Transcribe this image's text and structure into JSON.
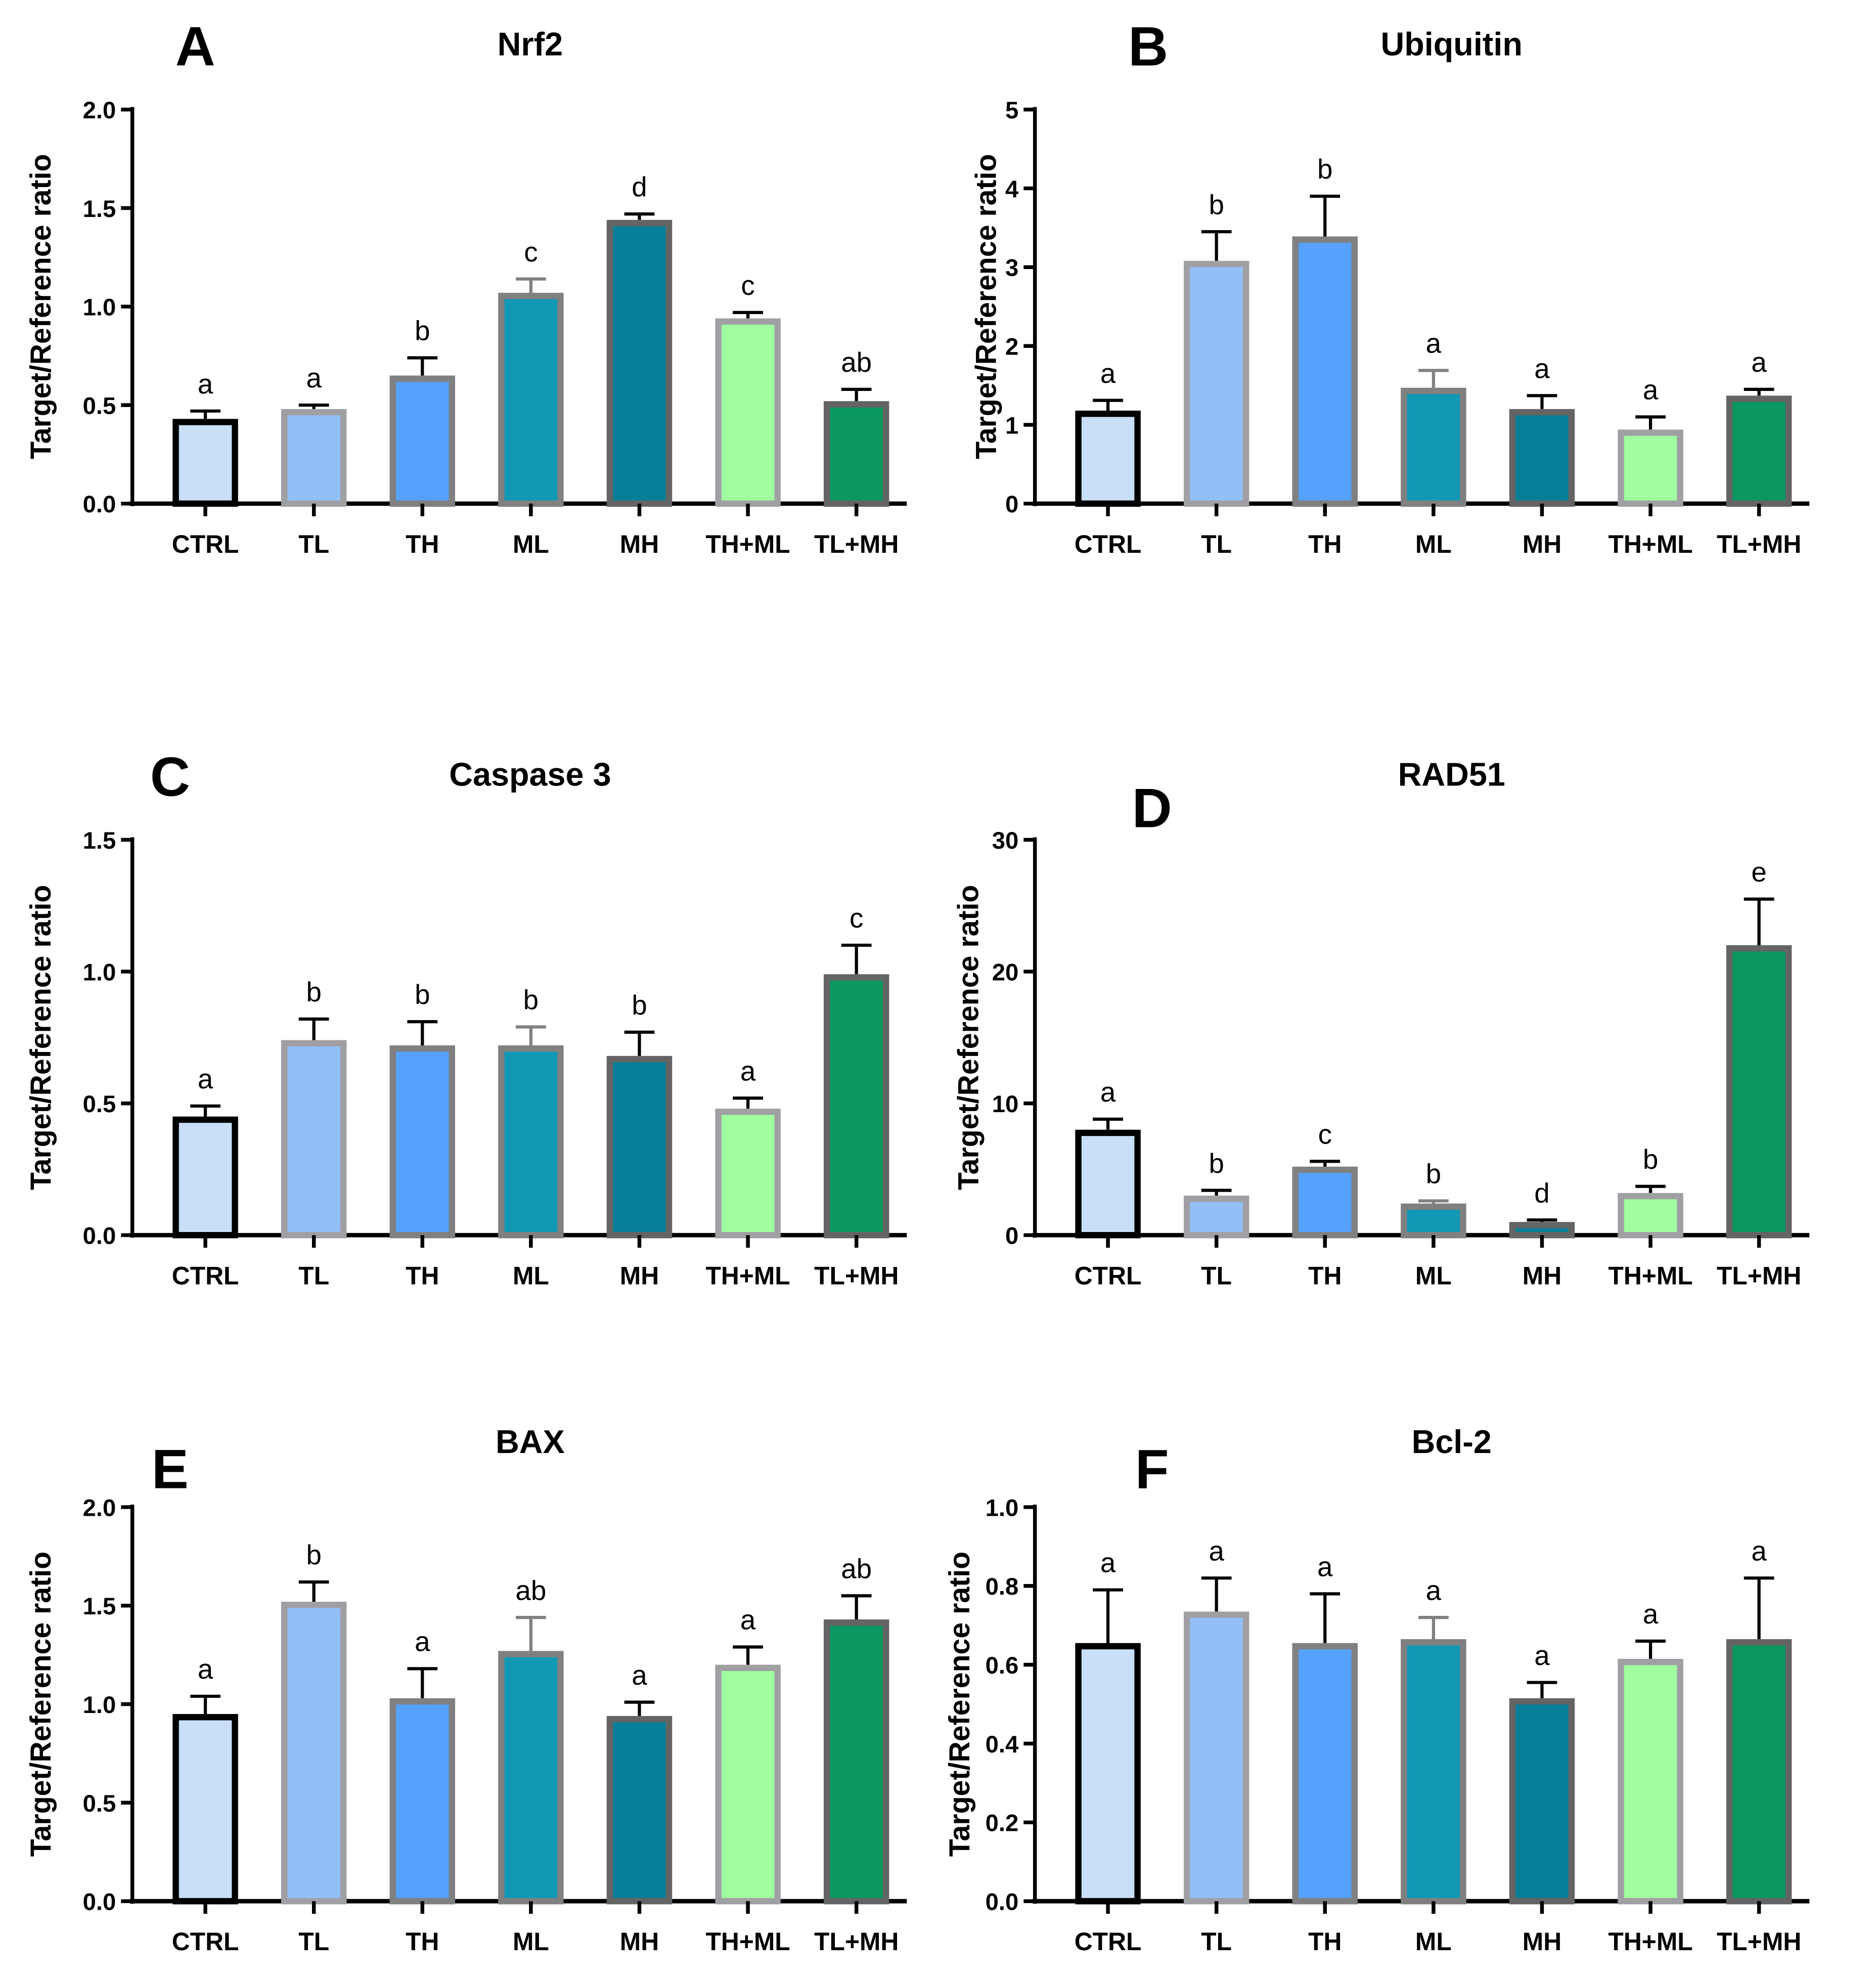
{
  "groups": [
    "CTRL",
    "TL",
    "TH",
    "ML",
    "MH",
    "TH+ML",
    "TL+MH"
  ],
  "group_colors": {
    "fill": [
      "#c9dff7",
      "#92bff8",
      "#56a1fc",
      "#1198b4",
      "#087f98",
      "#a0fe9e",
      "#0b9860"
    ],
    "border": [
      "#000000",
      "#a0a0a4",
      "#808080",
      "#808080",
      "#646464",
      "#a0a0a4",
      "#646464"
    ],
    "errorbar": [
      "#000000",
      "#000000",
      "#000000",
      "#808080",
      "#000000",
      "#000000",
      "#000000"
    ]
  },
  "chart_data": [
    {
      "panel": "A",
      "type": "bar",
      "title": "Nrf2",
      "ylabel": "Target/Reference ratio",
      "ylim": [
        0,
        2.0
      ],
      "yticks": [
        "0.0",
        "0.5",
        "1.0",
        "1.5",
        "2.0"
      ],
      "values": [
        0.43,
        0.48,
        0.65,
        1.07,
        1.44,
        0.94,
        0.52
      ],
      "errors": [
        0.04,
        0.02,
        0.09,
        0.07,
        0.03,
        0.03,
        0.06
      ],
      "significance": [
        "a",
        "a",
        "b",
        "c",
        "d",
        "c",
        "ab"
      ]
    },
    {
      "panel": "B",
      "type": "bar",
      "title": "Ubiquitin",
      "ylabel": "Target/Reference ratio",
      "ylim": [
        0,
        5
      ],
      "yticks": [
        "0",
        "1",
        "2",
        "3",
        "4",
        "5"
      ],
      "values": [
        1.18,
        3.08,
        3.39,
        1.47,
        1.2,
        0.94,
        1.37
      ],
      "errors": [
        0.13,
        0.37,
        0.51,
        0.22,
        0.17,
        0.16,
        0.08
      ],
      "significance": [
        "a",
        "b",
        "b",
        "a",
        "a",
        "a",
        "a"
      ]
    },
    {
      "panel": "C",
      "type": "bar",
      "title": "Caspase 3",
      "ylabel": "Target/Reference ratio",
      "ylim": [
        0,
        1.5
      ],
      "yticks": [
        "0.0",
        "0.5",
        "1.0",
        "1.5"
      ],
      "values": [
        0.45,
        0.74,
        0.72,
        0.72,
        0.68,
        0.48,
        0.99
      ],
      "errors": [
        0.04,
        0.08,
        0.09,
        0.07,
        0.09,
        0.04,
        0.11
      ],
      "significance": [
        "a",
        "b",
        "b",
        "b",
        "b",
        "a",
        "c"
      ]
    },
    {
      "panel": "D",
      "type": "bar",
      "title": "RAD51",
      "ylabel": "Target/Reference ratio",
      "ylim": [
        0,
        30
      ],
      "yticks": [
        "0",
        "10",
        "20",
        "30"
      ],
      "values": [
        8.0,
        3.0,
        5.2,
        2.4,
        1.0,
        3.2,
        22.0
      ],
      "errors": [
        0.8,
        0.4,
        0.4,
        0.2,
        0.15,
        0.5,
        3.5
      ],
      "significance": [
        "a",
        "b",
        "c",
        "b",
        "d",
        "b",
        "e"
      ]
    },
    {
      "panel": "E",
      "type": "bar",
      "title": "BAX",
      "ylabel": "Target/Reference ratio",
      "ylim": [
        0,
        2.0
      ],
      "yticks": [
        "0.0",
        "0.5",
        "1.0",
        "1.5",
        "2.0"
      ],
      "values": [
        0.95,
        1.52,
        1.03,
        1.27,
        0.94,
        1.2,
        1.43
      ],
      "errors": [
        0.09,
        0.1,
        0.15,
        0.17,
        0.07,
        0.09,
        0.12
      ],
      "significance": [
        "a",
        "b",
        "a",
        "ab",
        "a",
        "a",
        "ab"
      ]
    },
    {
      "panel": "F",
      "type": "bar",
      "title": "Bcl-2",
      "ylabel": "Target/Reference ratio",
      "ylim": [
        0,
        1.0
      ],
      "yticks": [
        "0.0",
        "0.2",
        "0.4",
        "0.6",
        "0.8",
        "1.0"
      ],
      "values": [
        0.655,
        0.735,
        0.655,
        0.665,
        0.515,
        0.615,
        0.665
      ],
      "errors": [
        0.135,
        0.085,
        0.125,
        0.055,
        0.04,
        0.045,
        0.155
      ],
      "significance": [
        "a",
        "a",
        "a",
        "a",
        "a",
        "a",
        "a"
      ]
    }
  ]
}
